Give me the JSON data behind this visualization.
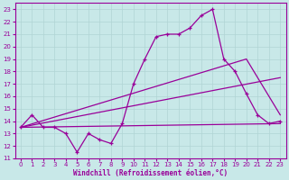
{
  "xlabel": "Windchill (Refroidissement éolien,°C)",
  "xlim": [
    -0.5,
    23.5
  ],
  "ylim": [
    11,
    23.5
  ],
  "yticks": [
    11,
    12,
    13,
    14,
    15,
    16,
    17,
    18,
    19,
    20,
    21,
    22,
    23
  ],
  "xticks": [
    0,
    1,
    2,
    3,
    4,
    5,
    6,
    7,
    8,
    9,
    10,
    11,
    12,
    13,
    14,
    15,
    16,
    17,
    18,
    19,
    20,
    21,
    22,
    23
  ],
  "bg_color": "#c8e8e8",
  "grid_color": "#b0d4d4",
  "line_color": "#990099",
  "line1_x": [
    0,
    1,
    2,
    3,
    4,
    5,
    6,
    7,
    8,
    9,
    10,
    11,
    12,
    13,
    14,
    15,
    16,
    17,
    18,
    19,
    20,
    21,
    22,
    23
  ],
  "line1_y": [
    13.5,
    14.5,
    13.5,
    13.5,
    13.0,
    11.5,
    13.0,
    12.5,
    12.2,
    13.8,
    17.0,
    19.0,
    20.8,
    21.0,
    21.0,
    21.5,
    22.5,
    23.0,
    19.0,
    18.0,
    16.2,
    14.5,
    13.8,
    14.0
  ],
  "line2_x": [
    0,
    20,
    23
  ],
  "line2_y": [
    13.5,
    19.0,
    14.5
  ],
  "line3_x": [
    0,
    23
  ],
  "line3_y": [
    13.5,
    17.5
  ],
  "line4_x": [
    0,
    23
  ],
  "line4_y": [
    13.5,
    13.8
  ]
}
